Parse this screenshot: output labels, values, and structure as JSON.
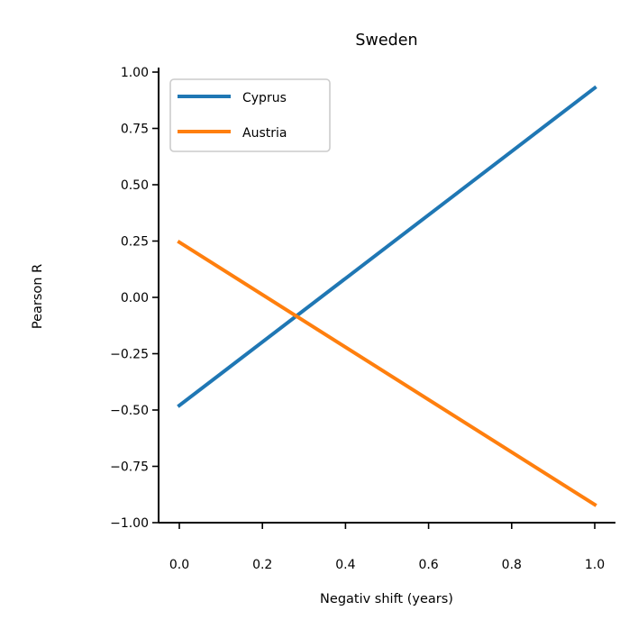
{
  "chart_data": {
    "type": "line",
    "title": "Sweden",
    "xlabel": "Negativ shift (years)",
    "ylabel": "Pearson R",
    "xlim": [
      -0.05,
      1.05
    ],
    "ylim": [
      -1.0,
      1.0
    ],
    "xticks": [
      0.0,
      0.2,
      0.4,
      0.6,
      0.8,
      1.0
    ],
    "xtick_labels": [
      "0.0",
      "0.2",
      "0.4",
      "0.6",
      "0.8",
      "1.0"
    ],
    "yticks": [
      1.0,
      0.75,
      0.5,
      0.25,
      0.0,
      -0.25,
      -0.5,
      -0.75,
      -1.0
    ],
    "ytick_labels": [
      "1.00",
      "0.75",
      "0.50",
      "0.25",
      "0.00",
      "−0.25",
      "−0.50",
      "−0.75",
      "−1.00"
    ],
    "grid": false,
    "legend_position": "top-left",
    "series": [
      {
        "name": "Cyprus",
        "color": "#1f77b4",
        "x": [
          0.0,
          1.0
        ],
        "y": [
          -0.48,
          0.93
        ]
      },
      {
        "name": "Austria",
        "color": "#ff7f0e",
        "x": [
          0.0,
          1.0
        ],
        "y": [
          0.245,
          -0.92
        ]
      }
    ]
  }
}
